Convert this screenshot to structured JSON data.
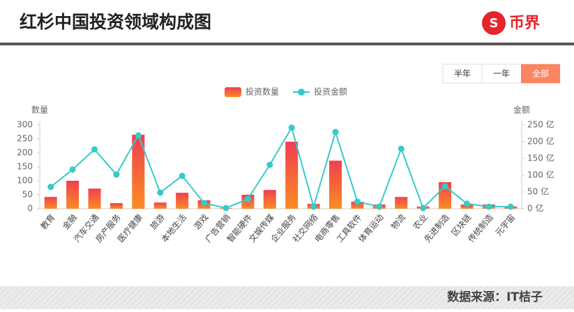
{
  "header": {
    "title": "红杉中国投资领域构成图",
    "logo": "币界"
  },
  "buttons": [
    "半年",
    "一年",
    "全部"
  ],
  "footer": "数据来源：IT桔子",
  "chart_data": {
    "type": "bar-line",
    "y_label": "数量",
    "y2_label": "金额",
    "categories": [
      "教育",
      "金融",
      "汽车交通",
      "房产服务",
      "医疗健康",
      "旅游",
      "本地生活",
      "游戏",
      "广告营销",
      "智能硬件",
      "文娱传媒",
      "企业服务",
      "社交网络",
      "电商零售",
      "工具软件",
      "体育运动",
      "物流",
      "农业",
      "先进制造",
      "区块链",
      "传统制造",
      "元宇宙"
    ],
    "series": [
      {
        "name": "投资数量",
        "type": "bar",
        "color": "#f03e52",
        "values": [
          42,
          100,
          72,
          20,
          265,
          22,
          57,
          30,
          2,
          50,
          67,
          240,
          17,
          172,
          25,
          15,
          42,
          8,
          95,
          15,
          15,
          8
        ]
      },
      {
        "name": "投资金额",
        "type": "line",
        "axis": "y2",
        "color": "#36cbc9",
        "values": [
          65,
          117,
          177,
          102,
          219,
          48,
          98,
          17,
          2,
          29,
          131,
          242,
          6,
          229,
          21,
          6,
          179,
          2,
          67,
          15,
          6,
          6
        ]
      }
    ],
    "ylim": [
      0,
      300
    ],
    "yticks": [
      0,
      50,
      100,
      150,
      200,
      250,
      300
    ],
    "y2lim": [
      0,
      250
    ],
    "y2ticks": [
      {
        "value": 0,
        "label": "0 亿"
      },
      {
        "value": 50,
        "label": "50 亿"
      },
      {
        "value": 100,
        "label": "100 亿"
      },
      {
        "value": 150,
        "label": "150 亿"
      },
      {
        "value": 200,
        "label": "200 亿"
      },
      {
        "value": 250,
        "label": "250 亿"
      }
    ],
    "legend": "top"
  }
}
